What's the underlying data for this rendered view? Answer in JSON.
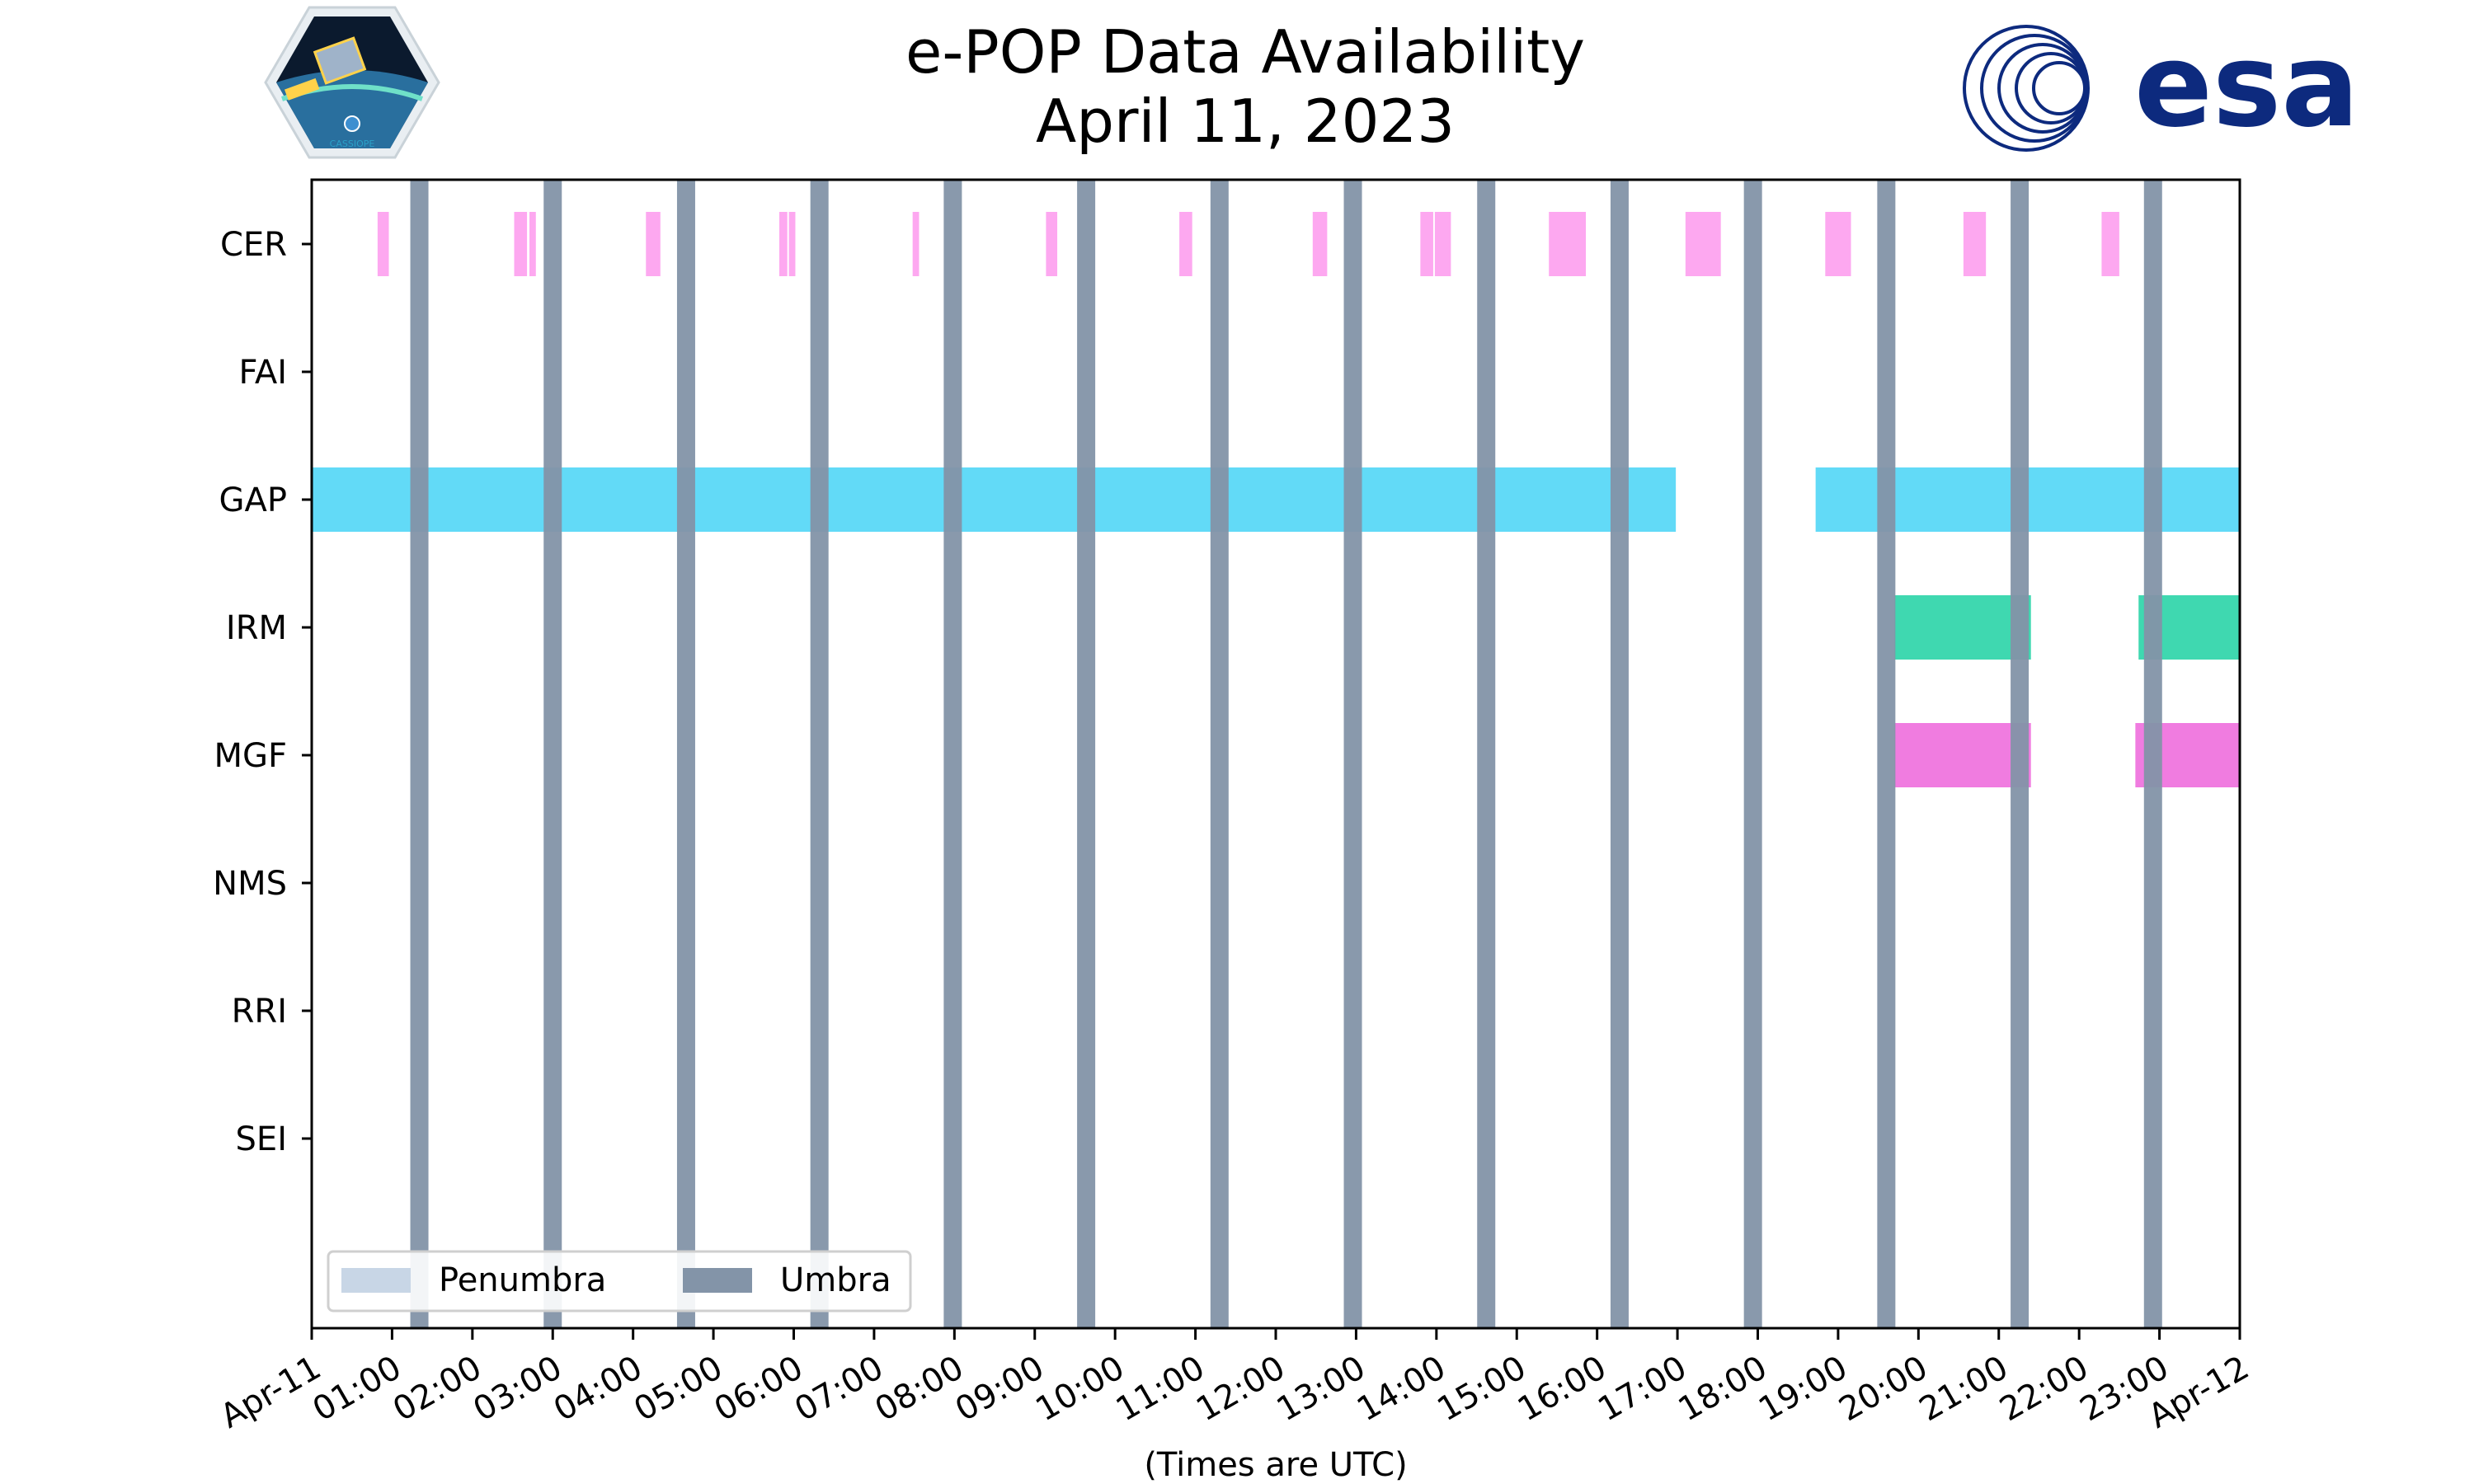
{
  "colors": {
    "umbra": "#8394a8",
    "penumbra": "#c8d6e6",
    "CER": "#fda8f0",
    "GAP": "#62daf7",
    "IRM": "#3fd8b0",
    "MGF": "#f07ce0",
    "esa": "#0d2a7e"
  },
  "logos": {
    "left": "CASSIOPE",
    "right": "esa"
  },
  "chart_data": {
    "type": "timeline",
    "title": [
      "e-POP Data Availability",
      "April 11, 2023"
    ],
    "xlabel": "(Times are UTC)",
    "xlim_hours": [
      0,
      24
    ],
    "x_tick_labels": [
      "Apr-11",
      "01:00",
      "02:00",
      "03:00",
      "04:00",
      "05:00",
      "06:00",
      "07:00",
      "08:00",
      "09:00",
      "10:00",
      "11:00",
      "12:00",
      "13:00",
      "14:00",
      "15:00",
      "16:00",
      "17:00",
      "18:00",
      "19:00",
      "20:00",
      "21:00",
      "22:00",
      "23:00",
      "Apr-12"
    ],
    "instruments": [
      "CER",
      "FAI",
      "GAP",
      "IRM",
      "MGF",
      "NMS",
      "RRI",
      "SEI"
    ],
    "umbra_hours": [
      1.34,
      3.0,
      4.66,
      6.32,
      7.98,
      9.64,
      11.3,
      12.96,
      14.62,
      16.28,
      17.94,
      19.6,
      21.26,
      22.92
    ],
    "availability": {
      "CER": [
        [
          0.82,
          0.96
        ],
        [
          2.52,
          2.68
        ],
        [
          2.71,
          2.79
        ],
        [
          4.16,
          4.34
        ],
        [
          5.82,
          5.92
        ],
        [
          5.94,
          6.02
        ],
        [
          7.48,
          7.56
        ],
        [
          9.14,
          9.28
        ],
        [
          10.8,
          10.96
        ],
        [
          12.46,
          12.64
        ],
        [
          13.8,
          13.96
        ],
        [
          13.98,
          14.18
        ],
        [
          15.4,
          15.86
        ],
        [
          17.1,
          17.54
        ],
        [
          18.84,
          19.16
        ],
        [
          20.56,
          20.84
        ],
        [
          22.28,
          22.5
        ]
      ],
      "FAI": [],
      "GAP": [
        [
          0.0,
          16.98
        ],
        [
          18.72,
          24.0
        ]
      ],
      "IRM": [
        [
          19.7,
          21.4
        ],
        [
          22.74,
          24.0
        ]
      ],
      "MGF": [
        [
          19.7,
          21.4
        ],
        [
          22.7,
          24.0
        ]
      ],
      "NMS": [],
      "RRI": [],
      "SEI": []
    },
    "legend": {
      "position": "lower-left",
      "entries": [
        "Penumbra",
        "Umbra"
      ]
    }
  }
}
